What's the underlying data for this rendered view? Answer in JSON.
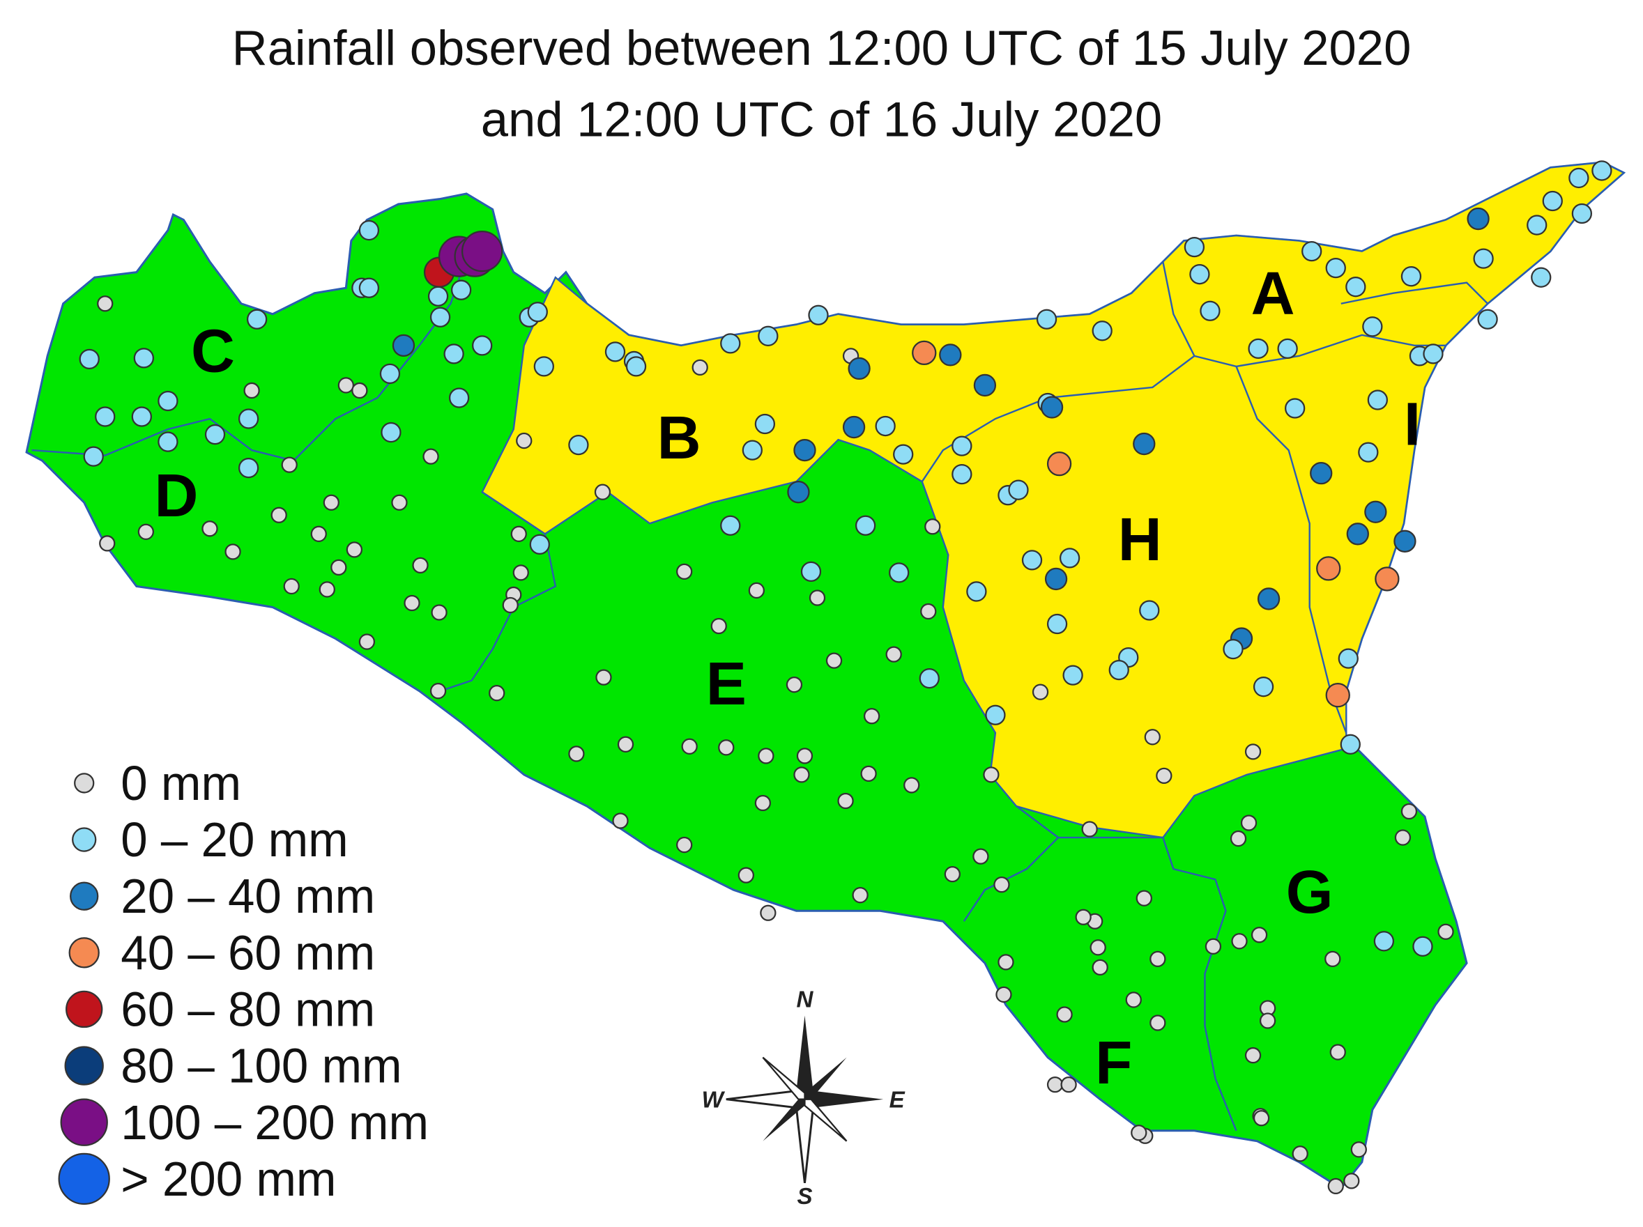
{
  "header": {
    "title_line1": "Rainfall observed between 12:00 UTC of 15 July 2020",
    "title_line2": "and 12:00 UTC of 16 July 2020"
  },
  "regions": [
    "A",
    "B",
    "C",
    "D",
    "E",
    "F",
    "G",
    "H",
    "I"
  ],
  "legend": [
    {
      "label": "0 mm",
      "color": "#dcdcdc"
    },
    {
      "label": "0 – 20 mm",
      "color": "#8fdcf5"
    },
    {
      "label": "20 – 40 mm",
      "color": "#1f7bbf"
    },
    {
      "label": "40 – 60 mm",
      "color": "#f58a52"
    },
    {
      "label": "60 – 80 mm",
      "color": "#c0141c"
    },
    {
      "label": "80 – 100 mm",
      "color": "#0b3d7a"
    },
    {
      "label": "100 – 200 mm",
      "color": "#7a0f85"
    },
    {
      "label": "> 200 mm",
      "color": "#1462e6"
    }
  ],
  "compass": {
    "n": "N",
    "e": "E",
    "s": "S",
    "w": "W"
  }
}
